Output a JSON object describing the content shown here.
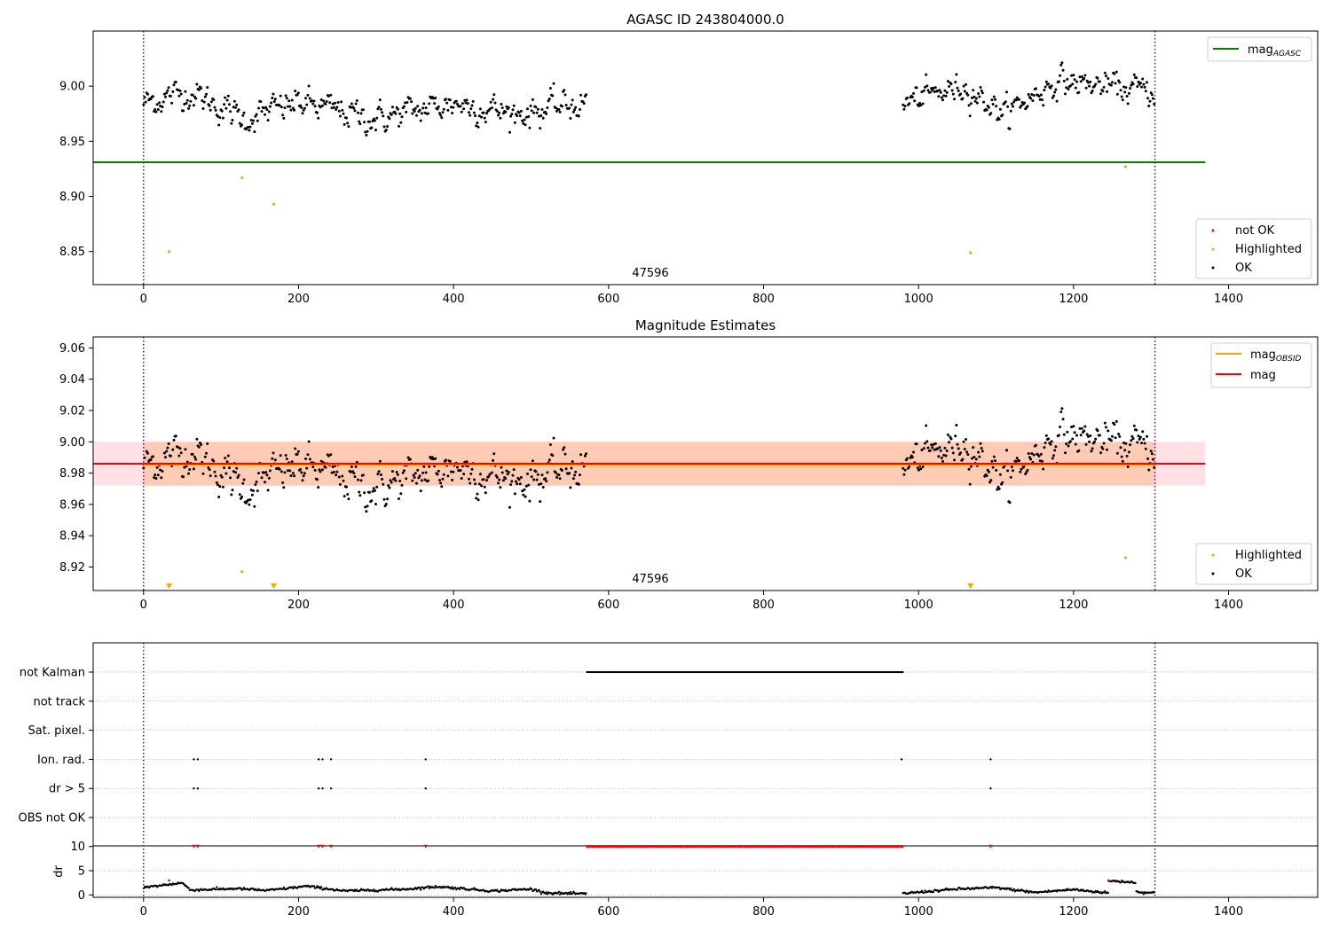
{
  "chart_data": [
    {
      "type": "scatter",
      "title": "AGASC ID 243804000.0",
      "xlim": [
        -65,
        1515
      ],
      "ylim": [
        8.82,
        9.05
      ],
      "xticks": [
        0,
        200,
        400,
        600,
        800,
        1000,
        1200,
        1400
      ],
      "yticks": [
        8.85,
        8.9,
        8.95,
        9.0
      ],
      "grid": false,
      "annotation": {
        "text": "47596",
        "x": 655
      },
      "vlines": [
        0,
        1305
      ],
      "lines": [
        {
          "name": "mag",
          "subscript": "AGASC",
          "y": 8.931,
          "x_range": [
            -65,
            1370
          ],
          "color": "#008000"
        }
      ],
      "highlighted_points": [
        {
          "x": 33,
          "y": 8.85
        },
        {
          "x": 127,
          "y": 8.917
        },
        {
          "x": 168,
          "y": 8.893
        },
        {
          "x": 1067,
          "y": 8.849
        },
        {
          "x": 1267,
          "y": 8.927
        }
      ],
      "ok_segments": [
        {
          "x_range": [
            0,
            572
          ],
          "center": 8.98,
          "trend": [
            [
              0,
              8.985
            ],
            [
              60,
              8.995
            ],
            [
              130,
              8.97
            ],
            [
              200,
              8.985
            ],
            [
              300,
              8.97
            ],
            [
              400,
              8.985
            ],
            [
              480,
              8.975
            ],
            [
              572,
              8.985
            ]
          ],
          "spread": 0.013
        },
        {
          "x_range": [
            980,
            1305
          ],
          "center": 8.995,
          "trend": [
            [
              980,
              8.985
            ],
            [
              1060,
              9.0
            ],
            [
              1110,
              8.975
            ],
            [
              1180,
              9.005
            ],
            [
              1240,
              9.0
            ],
            [
              1305,
              8.995
            ]
          ],
          "spread": 0.012
        }
      ],
      "legend_position": "lower-right",
      "legend": [
        {
          "label": "not OK",
          "color": "#ff0000"
        },
        {
          "label": "Highlighted",
          "color": "#ffa500"
        },
        {
          "label": "OK",
          "color": "#000000"
        }
      ],
      "legend_top": {
        "label": "mag",
        "subscript": "AGASC",
        "color": "#008000",
        "position": "top-right"
      }
    },
    {
      "type": "scatter",
      "title": "Magnitude Estimates",
      "xlim": [
        -65,
        1515
      ],
      "ylim": [
        8.905,
        9.067
      ],
      "xticks": [
        0,
        200,
        400,
        600,
        800,
        1000,
        1200,
        1400
      ],
      "yticks": [
        8.92,
        8.94,
        8.96,
        8.98,
        9.0,
        9.02,
        9.04,
        9.06
      ],
      "grid": false,
      "annotation": {
        "text": "47596",
        "x": 655
      },
      "vlines": [
        0,
        1305
      ],
      "bands": [
        {
          "y_range": [
            8.972,
            9.0
          ],
          "x_range": [
            -65,
            1370
          ],
          "color": "#ff9aa8"
        },
        {
          "y_range": [
            8.972,
            9.0
          ],
          "x_range": [
            0,
            1305
          ],
          "color": "#ffb27a"
        }
      ],
      "lines": [
        {
          "name": "mag",
          "subscript": "OBSID",
          "y": 8.986,
          "x_range": [
            0,
            1305
          ],
          "color": "#ffa500"
        },
        {
          "name": "mag",
          "y": 8.986,
          "x_range": [
            -65,
            1370
          ],
          "color": "#ff0000"
        }
      ],
      "highlighted_points": [
        {
          "x": 127,
          "y": 8.917
        },
        {
          "x": 1267,
          "y": 8.926
        }
      ],
      "highlighted_below_range": [
        33,
        168,
        1067
      ],
      "legend_position": "lower-right",
      "legend": [
        {
          "label": "Highlighted",
          "color": "#ffa500"
        },
        {
          "label": "OK",
          "color": "#000000"
        }
      ],
      "legend_top": [
        {
          "label": "mag",
          "subscript": "OBSID",
          "color": "#ffa500"
        },
        {
          "label": "mag",
          "color": "#ff0000"
        }
      ]
    },
    {
      "type": "scatter",
      "xlim": [
        -65,
        1515
      ],
      "xticks": [
        0,
        200,
        400,
        600,
        800,
        1000,
        1200,
        1400
      ],
      "flag_rows": [
        {
          "label": "not Kalman",
          "ranges": [
            [
              572,
              980
            ]
          ],
          "points": []
        },
        {
          "label": "not track",
          "ranges": [],
          "points": []
        },
        {
          "label": "Sat. pixel.",
          "ranges": [],
          "points": []
        },
        {
          "label": "Ion. rad.",
          "ranges": [],
          "points": [
            65,
            70,
            226,
            231,
            242,
            364,
            978,
            1093
          ]
        },
        {
          "label": "dr > 5",
          "ranges": [],
          "points": [
            65,
            70,
            226,
            231,
            242,
            364,
            1093
          ]
        },
        {
          "label": "OBS not OK",
          "ranges": [],
          "points": []
        }
      ],
      "vlines": [
        0,
        1305
      ],
      "dr": {
        "ylabel": "dr",
        "yticks": [
          0,
          5,
          10
        ],
        "ylim": [
          -0.5,
          10.5
        ],
        "clipped_value": 10,
        "clipped_ranges": [
          [
            572,
            980
          ]
        ],
        "clipped_points": [
          65,
          70,
          226,
          231,
          242,
          364,
          1093
        ],
        "trend": [
          [
            0,
            1.5
          ],
          [
            50,
            2.5
          ],
          [
            60,
            1.0
          ],
          [
            120,
            1.3
          ],
          [
            160,
            0.9
          ],
          [
            210,
            1.8
          ],
          [
            260,
            0.8
          ],
          [
            340,
            1.2
          ],
          [
            380,
            1.7
          ],
          [
            450,
            0.8
          ],
          [
            500,
            1.2
          ],
          [
            520,
            0.4
          ],
          [
            572,
            0.2
          ],
          [
            980,
            0.3
          ],
          [
            1050,
            1.2
          ],
          [
            1100,
            1.5
          ],
          [
            1150,
            0.5
          ],
          [
            1200,
            1.1
          ],
          [
            1245,
            0.4
          ],
          [
            1246,
            2.9
          ],
          [
            1280,
            2.6
          ],
          [
            1281,
            0.6
          ],
          [
            1305,
            0.4
          ]
        ],
        "spread": 0.25
      }
    }
  ]
}
